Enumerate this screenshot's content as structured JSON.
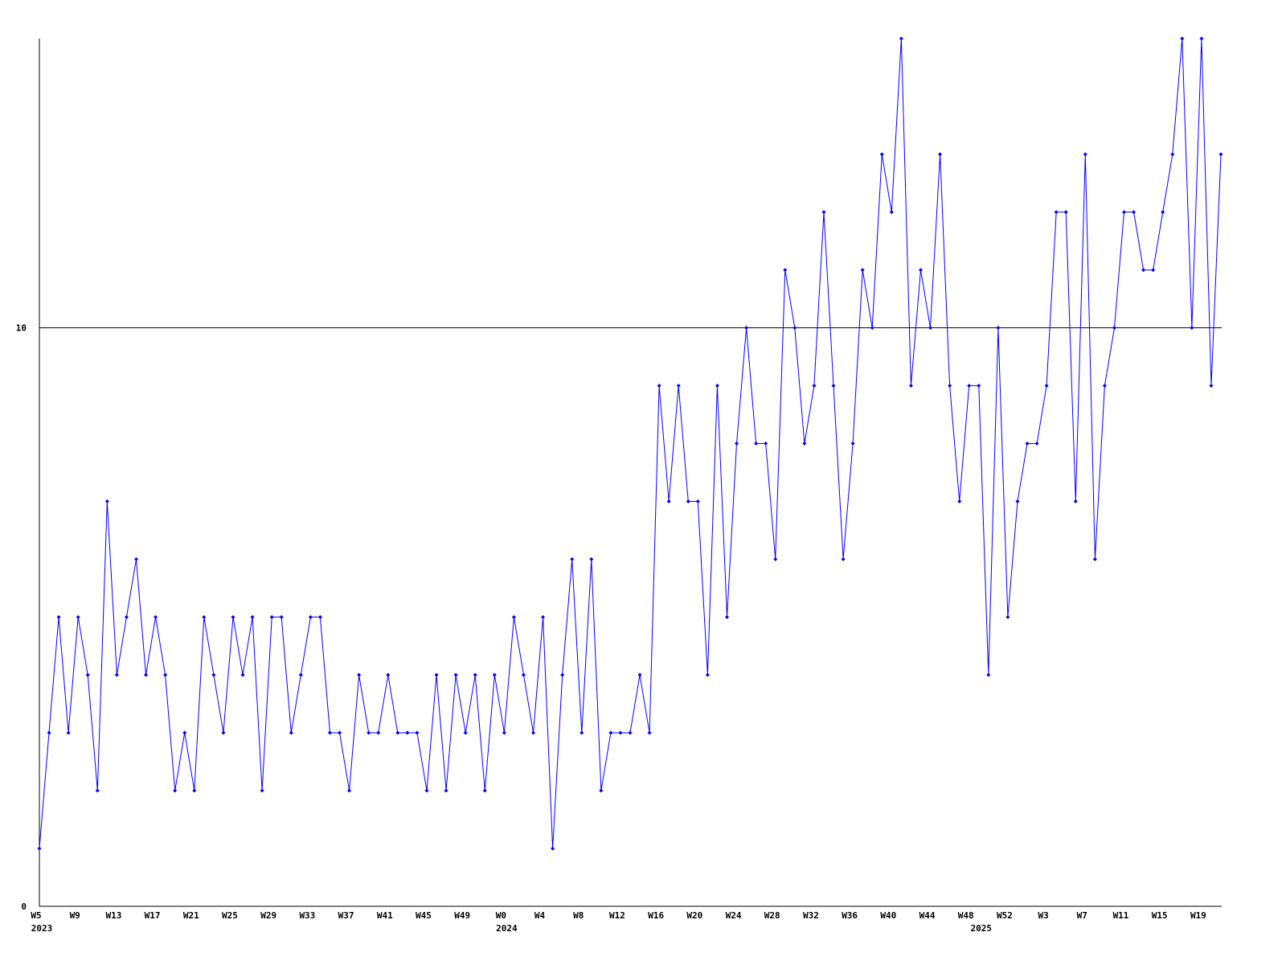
{
  "chart_data": {
    "type": "line",
    "color": "#0000ff",
    "categories": [
      "W5",
      null,
      null,
      null,
      "W9",
      null,
      null,
      null,
      "W13",
      null,
      null,
      null,
      "W17",
      null,
      null,
      null,
      "W21",
      null,
      null,
      null,
      "W25",
      null,
      null,
      null,
      "W29",
      null,
      null,
      null,
      "W33",
      null,
      null,
      null,
      "W37",
      null,
      null,
      null,
      "W41",
      null,
      null,
      null,
      "W45",
      null,
      null,
      null,
      "W49",
      null,
      null,
      null,
      "W0",
      null,
      null,
      null,
      "W4",
      null,
      null,
      null,
      "W8",
      null,
      null,
      null,
      "W12",
      null,
      null,
      null,
      "W16",
      null,
      null,
      null,
      "W20",
      null,
      null,
      null,
      "W24",
      null,
      null,
      null,
      "W28",
      null,
      null,
      null,
      "W32",
      null,
      null,
      null,
      "W36",
      null,
      null,
      null,
      "W40",
      null,
      null,
      null,
      "W44",
      null,
      null,
      null,
      "W48",
      null,
      null,
      null,
      "W52",
      null,
      null,
      null,
      "W3",
      null,
      null,
      null,
      "W7",
      null,
      null,
      null,
      "W11",
      null,
      null,
      null,
      "W15",
      null,
      null,
      null,
      "W19",
      null,
      null
    ],
    "x_sublabels": [
      "2023",
      null,
      null,
      null,
      null,
      null,
      null,
      null,
      null,
      null,
      null,
      null,
      null,
      null,
      null,
      null,
      null,
      null,
      null,
      null,
      null,
      null,
      null,
      null,
      null,
      null,
      null,
      null,
      null,
      null,
      null,
      null,
      null,
      null,
      null,
      null,
      null,
      null,
      null,
      null,
      null,
      null,
      null,
      null,
      null,
      null,
      null,
      null,
      "2024",
      null,
      null,
      null,
      null,
      null,
      null,
      null,
      null,
      null,
      null,
      null,
      null,
      null,
      null,
      null,
      null,
      null,
      null,
      null,
      null,
      null,
      null,
      null,
      null,
      null,
      null,
      null,
      null,
      null,
      null,
      null,
      null,
      null,
      null,
      null,
      null,
      null,
      null,
      null,
      null,
      null,
      null,
      null,
      null,
      null,
      null,
      null,
      null,
      "2025",
      null,
      null,
      null,
      null,
      null,
      null,
      null,
      null,
      null,
      null,
      null,
      null,
      null,
      null,
      null,
      null,
      null,
      null,
      null,
      null,
      null
    ],
    "values": [
      1,
      3,
      5,
      3,
      5,
      4,
      2,
      7,
      4,
      5,
      6,
      4,
      5,
      4,
      2,
      3,
      2,
      5,
      4,
      3,
      5,
      4,
      5,
      2,
      5,
      5,
      3,
      4,
      5,
      5,
      3,
      3,
      2,
      4,
      3,
      3,
      4,
      3,
      3,
      3,
      2,
      4,
      2,
      4,
      3,
      4,
      2,
      4,
      3,
      5,
      4,
      3,
      5,
      1,
      4,
      6,
      3,
      6,
      2,
      3,
      3,
      3,
      4,
      3,
      9,
      7,
      9,
      7,
      7,
      4,
      9,
      5,
      8,
      10,
      8,
      8,
      6,
      11,
      10,
      8,
      9,
      12,
      9,
      6,
      8,
      11,
      10,
      13,
      12,
      15,
      9,
      11,
      10,
      13,
      9,
      7,
      9,
      9,
      4,
      10,
      5,
      7,
      8,
      8,
      9,
      12,
      12,
      7,
      13,
      6,
      9,
      10,
      12,
      12,
      11,
      11,
      12,
      13,
      15,
      10,
      15,
      9,
      13
    ],
    "ylim": [
      0,
      15
    ],
    "yticks": [
      0,
      10
    ],
    "grid": true
  }
}
